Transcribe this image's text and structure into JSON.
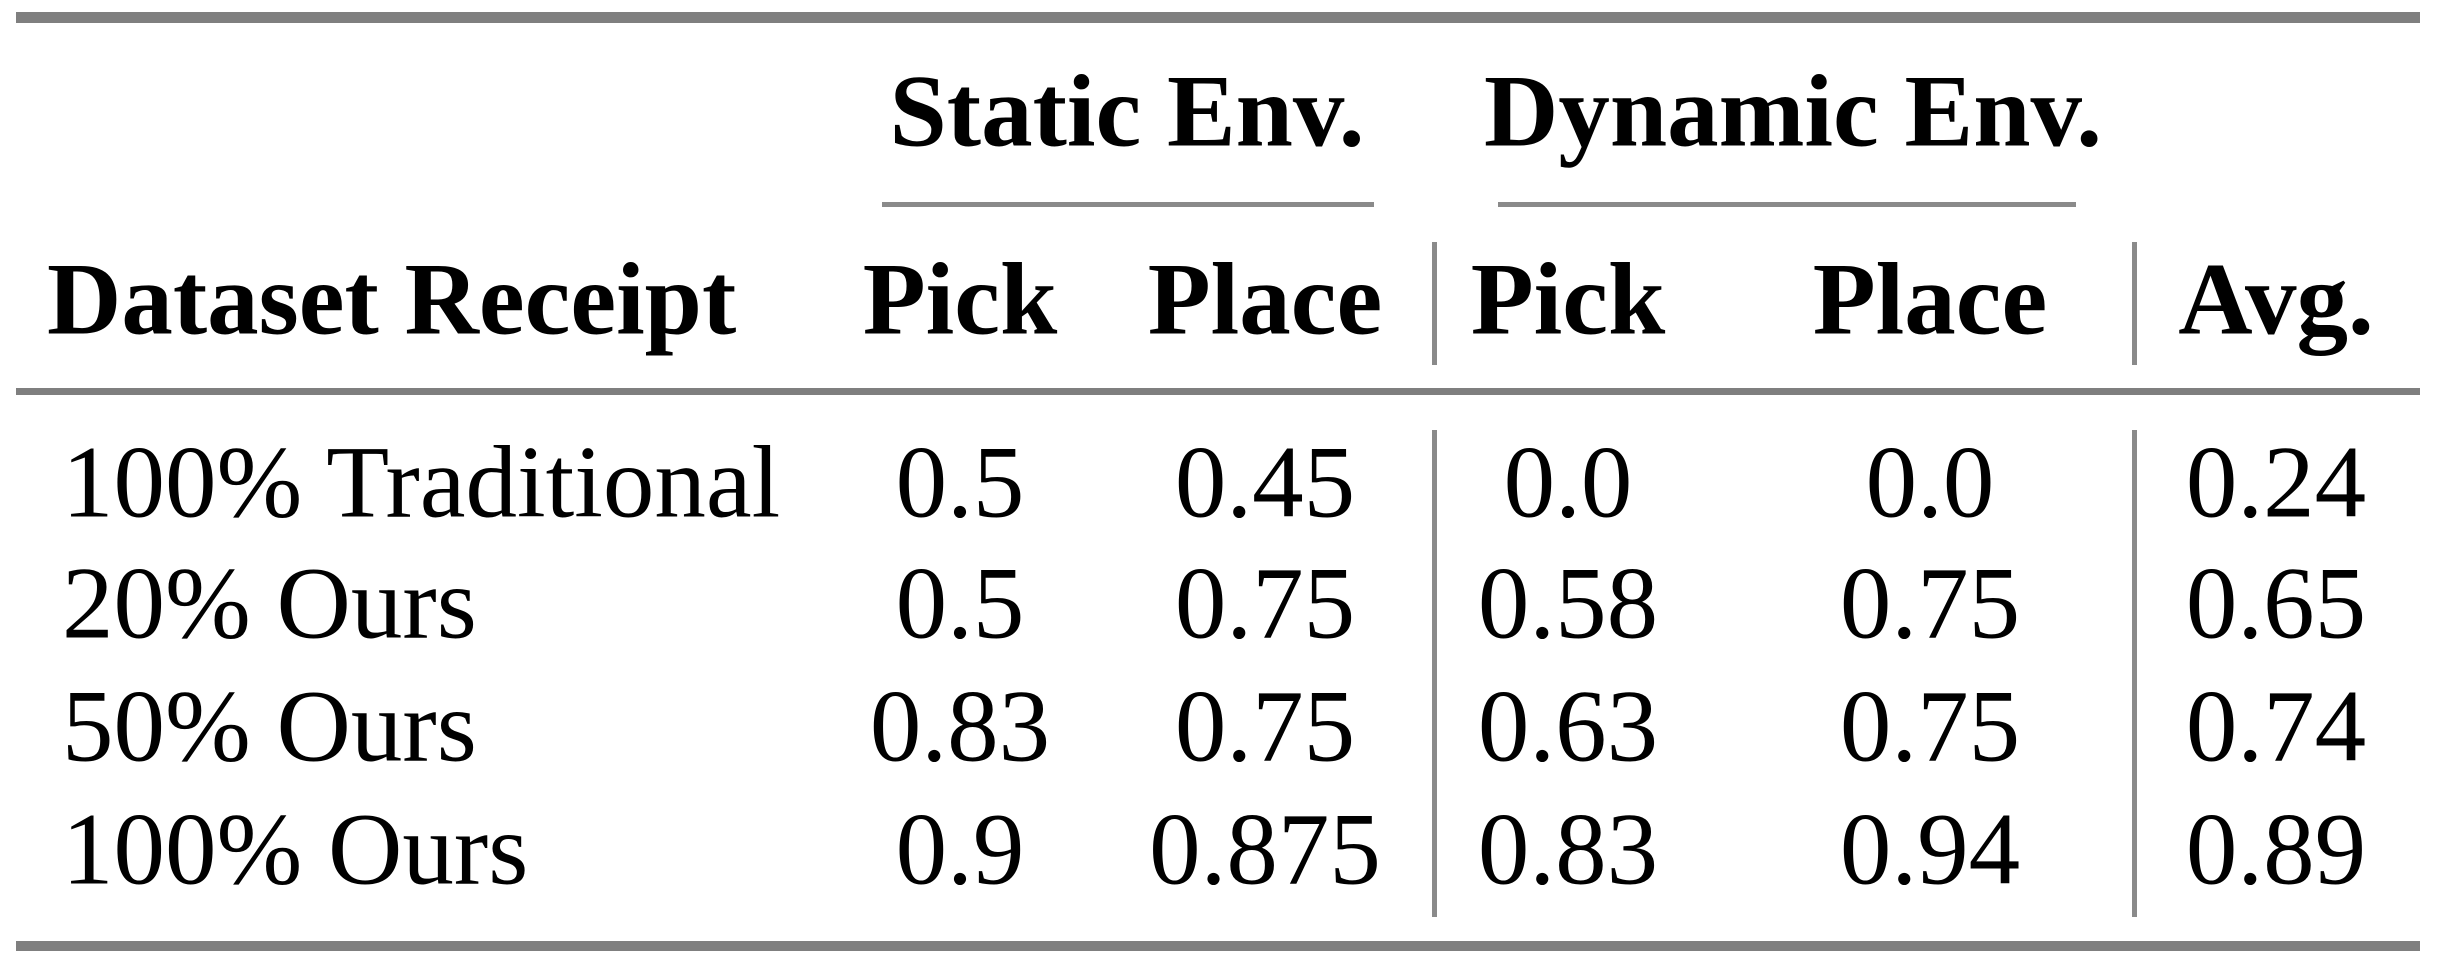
{
  "table": {
    "group_headers": {
      "static": "Static Env.",
      "dynamic": "Dynamic Env."
    },
    "column_headers": {
      "row_label": "Dataset Receipt",
      "static_pick": "Pick",
      "static_place": "Place",
      "dynamic_pick": "Pick",
      "dynamic_place": "Place",
      "avg": "Avg."
    },
    "rows": [
      {
        "label": "100% Traditional",
        "static_pick": "0.5",
        "static_place": "0.45",
        "dynamic_pick": "0.0",
        "dynamic_place": "0.0",
        "avg": "0.24"
      },
      {
        "label": "20% Ours",
        "static_pick": "0.5",
        "static_place": "0.75",
        "dynamic_pick": "0.58",
        "dynamic_place": "0.75",
        "avg": "0.65"
      },
      {
        "label": "50% Ours",
        "static_pick": "0.83",
        "static_place": "0.75",
        "dynamic_pick": "0.63",
        "dynamic_place": "0.75",
        "avg": "0.74"
      },
      {
        "label": "100% Ours",
        "static_pick": "0.9",
        "static_place": "0.875",
        "dynamic_pick": "0.83",
        "dynamic_place": "0.94",
        "avg": "0.89"
      }
    ],
    "colors": {
      "rule_gray": "#7f7f7f",
      "text": "#000000",
      "background": "#ffffff"
    }
  }
}
